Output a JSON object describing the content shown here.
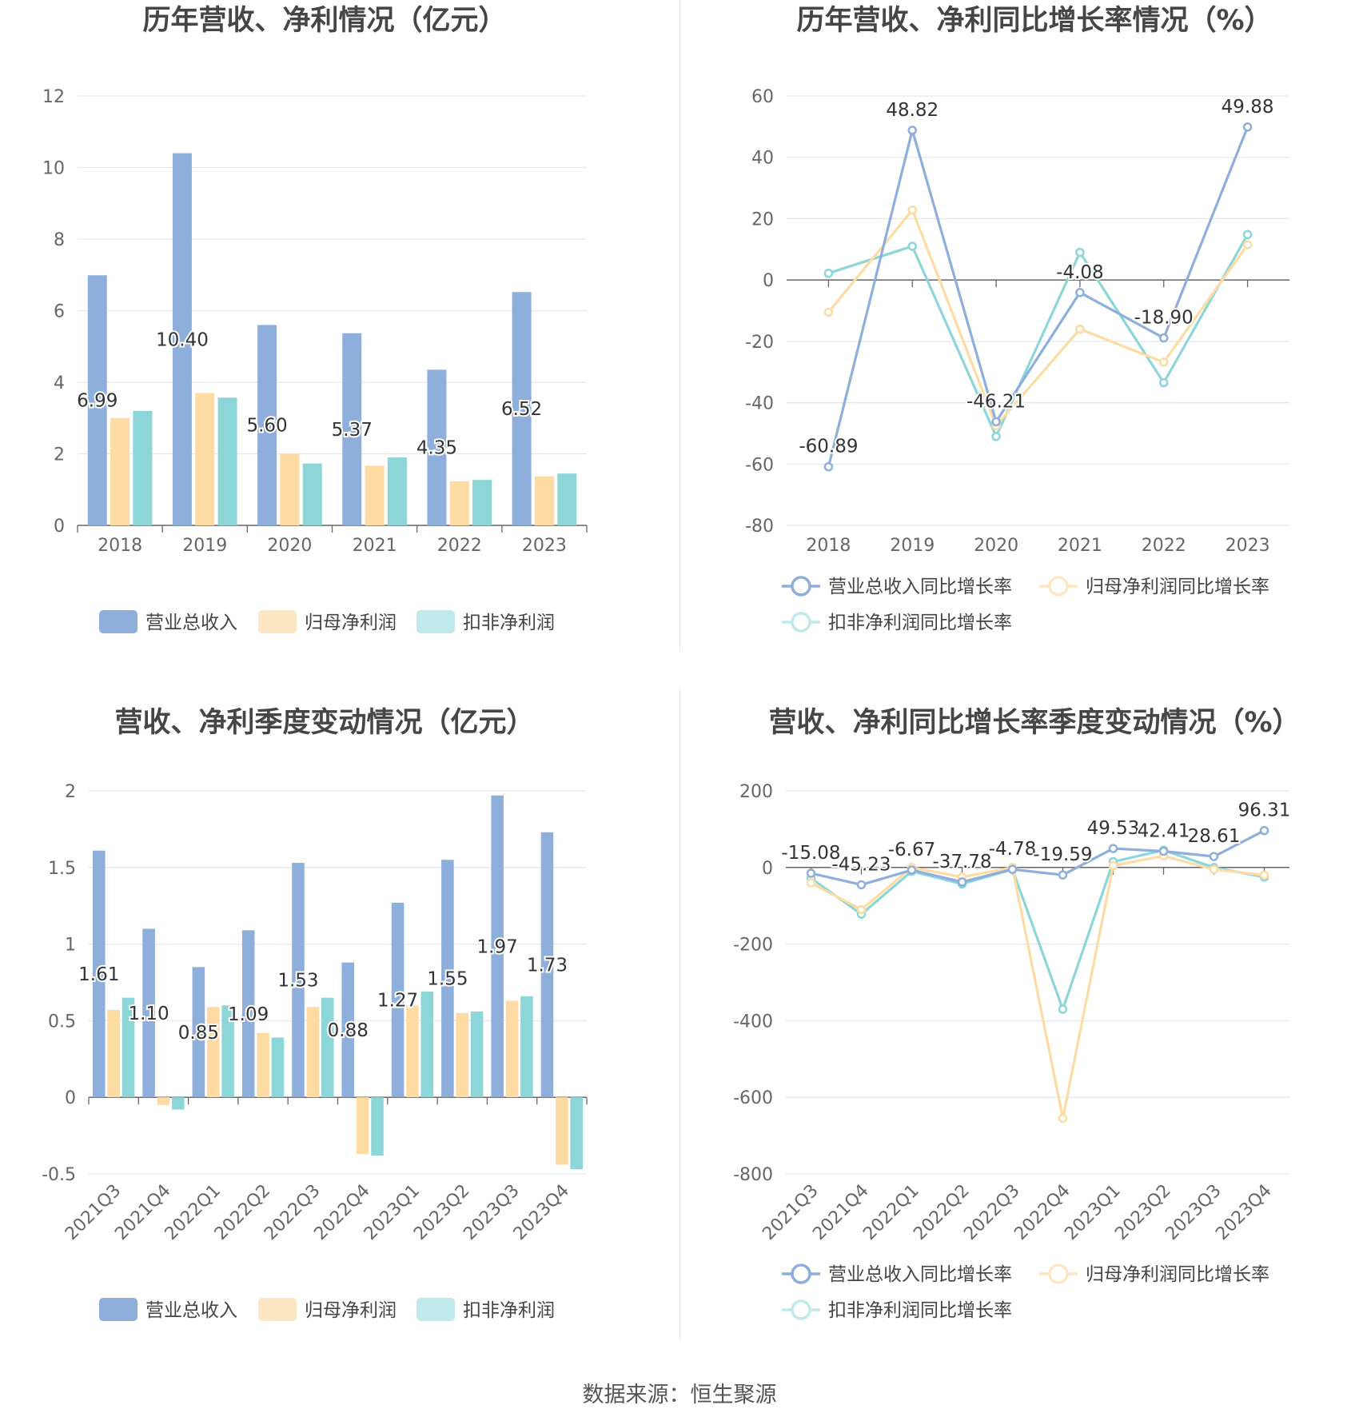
{
  "source": "数据来源：恒生聚源",
  "colors": {
    "revenue": "#8eaedb",
    "net_profit": "#fddba3",
    "deducted_profit": "#8dd6d8",
    "revenue_legend": "#8eaedb",
    "net_profit_legend": "#fde6c2",
    "deducted_profit_legend": "#bfe9ea",
    "grid": "#e4e7ef",
    "axis": "#666666"
  },
  "chart_data": [
    {
      "id": "annual-amount",
      "type": "bar",
      "title": "历年营收、净利情况（亿元）",
      "categories": [
        "2018",
        "2019",
        "2020",
        "2021",
        "2022",
        "2023"
      ],
      "series": [
        {
          "name": "营业总收入",
          "values": [
            6.99,
            10.4,
            5.6,
            5.37,
            4.35,
            6.52
          ],
          "labels": [
            "6.99",
            "10.40",
            "5.60",
            "5.37",
            "4.35",
            "6.52"
          ]
        },
        {
          "name": "归母净利润",
          "values": [
            3.0,
            3.7,
            2.0,
            1.67,
            1.23,
            1.37
          ]
        },
        {
          "name": "扣非净利润",
          "values": [
            3.2,
            3.57,
            1.73,
            1.9,
            1.27,
            1.45
          ]
        }
      ],
      "ylim": [
        0,
        12
      ],
      "yticks": [
        "0",
        "2",
        "4",
        "6",
        "8",
        "10",
        "12"
      ],
      "grid": true,
      "legend": "bottom"
    },
    {
      "id": "annual-growth",
      "type": "line",
      "title": "历年营收、净利同比增长率情况（%）",
      "categories": [
        "2018",
        "2019",
        "2020",
        "2021",
        "2022",
        "2023"
      ],
      "series": [
        {
          "name": "营业总收入同比增长率",
          "values": [
            -60.89,
            48.82,
            -46.21,
            -4.08,
            -18.9,
            49.88
          ],
          "labels": [
            "-60.89",
            "48.82",
            "-46.21",
            "-4.08",
            "-18.90",
            "49.88"
          ]
        },
        {
          "name": "归母净利润同比增长率",
          "values": [
            -10.5,
            22.8,
            -47.5,
            -16.0,
            -26.8,
            11.5
          ]
        },
        {
          "name": "扣非净利润同比增长率",
          "values": [
            2.2,
            11.0,
            -51.0,
            9.0,
            -33.5,
            14.8
          ]
        }
      ],
      "ylim": [
        -80,
        60
      ],
      "yticks": [
        "-80",
        "-60",
        "-40",
        "-20",
        "0",
        "20",
        "40",
        "60"
      ],
      "grid": true,
      "legend": "bottom"
    },
    {
      "id": "quarterly-amount",
      "type": "bar",
      "title": "营收、净利季度变动情况（亿元）",
      "categories": [
        "2021Q3",
        "2021Q4",
        "2022Q1",
        "2022Q2",
        "2022Q3",
        "2022Q4",
        "2023Q1",
        "2023Q2",
        "2023Q3",
        "2023Q4"
      ],
      "series": [
        {
          "name": "营业总收入",
          "values": [
            1.61,
            1.1,
            0.85,
            1.09,
            1.53,
            0.88,
            1.27,
            1.55,
            1.97,
            1.73
          ],
          "labels": [
            "1.61",
            "1.10",
            "0.85",
            "1.09",
            "1.53",
            "0.88",
            "1.27",
            "1.55",
            "1.97",
            "1.73"
          ]
        },
        {
          "name": "归母净利润",
          "values": [
            0.57,
            -0.05,
            0.59,
            0.42,
            0.59,
            -0.37,
            0.6,
            0.55,
            0.63,
            -0.44
          ]
        },
        {
          "name": "扣非净利润",
          "values": [
            0.65,
            -0.08,
            0.6,
            0.39,
            0.65,
            -0.38,
            0.69,
            0.56,
            0.66,
            -0.47
          ]
        }
      ],
      "ylim": [
        -0.5,
        2
      ],
      "yticks": [
        "-0.5",
        "0",
        "0.5",
        "1",
        "1.5",
        "2"
      ],
      "grid": true,
      "legend": "bottom"
    },
    {
      "id": "quarterly-growth",
      "type": "line",
      "title": "营收、净利同比增长率季度变动情况（%）",
      "categories": [
        "2021Q3",
        "2021Q4",
        "2022Q1",
        "2022Q2",
        "2022Q3",
        "2022Q4",
        "2023Q1",
        "2023Q2",
        "2023Q3",
        "2023Q4"
      ],
      "series": [
        {
          "name": "营业总收入同比增长率",
          "values": [
            -15.08,
            -45.23,
            -6.67,
            -37.78,
            -4.78,
            -19.59,
            49.53,
            42.41,
            28.61,
            96.31
          ],
          "labels": [
            "-15.08",
            "-45.23",
            "-6.67",
            "-37.78",
            "-4.78",
            "-19.59",
            "49.53",
            "42.41",
            "28.61",
            "96.31"
          ]
        },
        {
          "name": "归母净利润同比增长率",
          "values": [
            -40,
            -110,
            0,
            -25,
            0,
            -655,
            5,
            30,
            -5,
            -20
          ]
        },
        {
          "name": "扣非净利润同比增长率",
          "values": [
            -28,
            -122,
            -10,
            -43,
            -5,
            -370,
            15,
            45,
            0,
            -25
          ]
        }
      ],
      "ylim": [
        -800,
        200
      ],
      "yticks": [
        "-800",
        "-600",
        "-400",
        "-200",
        "0",
        "200"
      ],
      "grid": true,
      "legend": "bottom"
    }
  ]
}
